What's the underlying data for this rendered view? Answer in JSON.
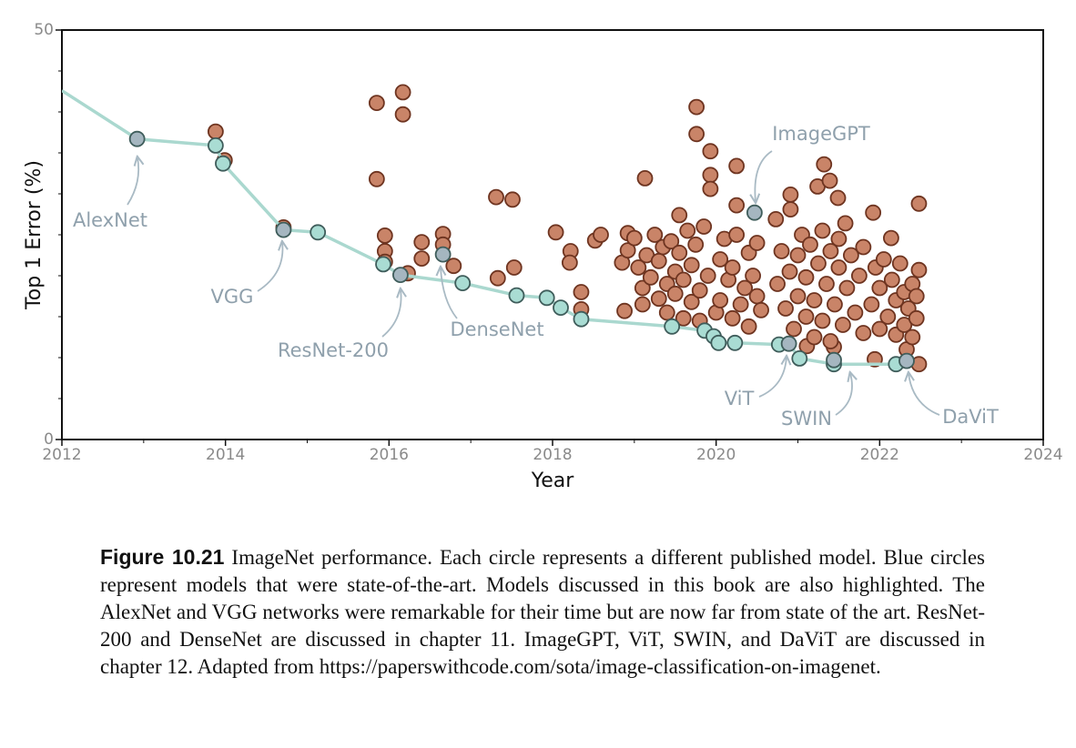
{
  "chart_data": {
    "type": "scatter",
    "xlabel": "Year",
    "ylabel": "Top 1 Error (%)",
    "xlim": [
      2012,
      2024
    ],
    "ylim": [
      0,
      50
    ],
    "xticks": [
      2012,
      2014,
      2016,
      2018,
      2020,
      2022,
      2024
    ],
    "xminor_ticks": [
      2013,
      2015,
      2017,
      2019,
      2021,
      2023
    ],
    "yticks": [
      0,
      50
    ],
    "yminor_ticks": [
      5,
      10,
      15,
      20,
      25,
      30,
      35,
      40,
      45
    ],
    "series": [
      {
        "color": "#c98468",
        "marker": true,
        "line": false,
        "x": [
          2013.88,
          2013.99,
          2014.71,
          2015.85,
          2016.17,
          2016.17,
          2015.85,
          2015.95,
          2015.95,
          2015.95,
          2016.23,
          2016.4,
          2016.4,
          2016.66,
          2016.66,
          2016.79,
          2017.31,
          2017.51,
          2017.33,
          2017.53,
          2018.04,
          2018.22,
          2018.21,
          2018.35,
          2018.35,
          2018.52,
          2018.59,
          2018.88,
          2018.85,
          2018.92,
          2018.92,
          2019.13,
          2019.55,
          2019.76,
          2019.76,
          2019.93,
          2019.93,
          2019.93,
          2020.25,
          2020.25,
          2020.73,
          2020.91,
          2020.91,
          2021.24,
          2021.32,
          2021.39,
          2021.49,
          2021.58,
          2021.92,
          2022.48,
          2022.48,
          2022.14,
          2022.48,
          2022.33,
          2021.94,
          2021.44,
          2021.11,
          2019.0,
          2019.05,
          2019.1,
          2019.1,
          2019.15,
          2019.2,
          2019.25,
          2019.3,
          2019.3,
          2019.35,
          2019.4,
          2019.4,
          2019.45,
          2019.5,
          2019.5,
          2019.55,
          2019.6,
          2019.6,
          2019.65,
          2019.7,
          2019.7,
          2019.75,
          2019.8,
          2019.8,
          2019.85,
          2019.9,
          2020.0,
          2020.05,
          2020.05,
          2020.1,
          2020.15,
          2020.2,
          2020.2,
          2020.25,
          2020.3,
          2020.35,
          2020.4,
          2020.4,
          2020.45,
          2020.5,
          2020.5,
          2020.55,
          2020.75,
          2020.8,
          2020.85,
          2020.9,
          2020.95,
          2021.0,
          2021.0,
          2021.05,
          2021.1,
          2021.1,
          2021.15,
          2021.2,
          2021.2,
          2021.25,
          2021.3,
          2021.3,
          2021.35,
          2021.4,
          2021.4,
          2021.45,
          2021.5,
          2021.5,
          2021.55,
          2021.6,
          2021.65,
          2021.7,
          2021.75,
          2021.8,
          2021.8,
          2021.9,
          2021.95,
          2022.0,
          2022.0,
          2022.05,
          2022.1,
          2022.15,
          2022.2,
          2022.2,
          2022.25,
          2022.3,
          2022.3,
          2022.35,
          2022.4,
          2022.4,
          2022.45,
          2022.45
        ],
        "y": [
          37.6,
          34.1,
          25.9,
          41.1,
          42.4,
          39.7,
          31.8,
          24.9,
          23.0,
          21.7,
          20.3,
          24.1,
          22.1,
          25.1,
          23.8,
          21.2,
          29.6,
          29.3,
          19.7,
          21.0,
          25.3,
          23.0,
          21.6,
          18.0,
          15.9,
          24.3,
          25.0,
          15.7,
          21.6,
          25.2,
          23.1,
          31.9,
          27.4,
          40.6,
          37.3,
          35.2,
          32.3,
          30.6,
          33.4,
          28.6,
          26.9,
          29.9,
          28.1,
          30.9,
          33.6,
          31.6,
          29.5,
          26.4,
          27.7,
          28.8,
          20.7,
          24.6,
          9.2,
          11.0,
          9.8,
          11.3,
          11.4,
          24.6,
          21.0,
          18.5,
          16.5,
          22.5,
          19.8,
          25.0,
          17.2,
          21.8,
          23.5,
          19.0,
          15.5,
          24.2,
          20.5,
          17.8,
          22.8,
          14.8,
          19.5,
          25.5,
          21.3,
          16.8,
          23.8,
          18.2,
          14.5,
          26.0,
          20.0,
          15.5,
          17.0,
          22.0,
          24.5,
          19.5,
          14.8,
          21.0,
          25.0,
          16.5,
          18.5,
          22.8,
          13.8,
          20.0,
          24.0,
          17.5,
          15.8,
          19.0,
          23.0,
          16.0,
          20.5,
          13.5,
          22.5,
          17.5,
          25.0,
          15.0,
          19.8,
          23.8,
          12.5,
          17.0,
          21.5,
          25.5,
          14.5,
          19.0,
          23.0,
          12.0,
          16.5,
          21.0,
          24.5,
          14.0,
          18.5,
          22.5,
          15.5,
          20.0,
          13.0,
          23.5,
          16.5,
          21.0,
          13.5,
          18.5,
          22.0,
          15.0,
          19.5,
          12.8,
          17.0,
          21.5,
          14.0,
          18.0,
          16.0,
          12.5,
          19.0,
          14.8,
          17.5
        ]
      },
      {
        "color": "#aad8cf",
        "marker": false,
        "line": true,
        "x": [
          2012,
          2012.92,
          2013.88,
          2013.97,
          2014.71,
          2015.13,
          2015.93,
          2016.14,
          2016.9,
          2017.56,
          2017.93,
          2018.1,
          2018.35,
          2019.46,
          2019.86,
          2019.97,
          2020.03,
          2020.23,
          2020.77,
          2020.89,
          2021.02,
          2021.44,
          2022.2,
          2022.33
        ],
        "y": [
          42.6,
          36.7,
          35.9,
          33.7,
          25.6,
          25.3,
          21.4,
          20.1,
          19.1,
          17.6,
          17.3,
          16.1,
          14.7,
          13.8,
          13.3,
          12.6,
          11.8,
          11.8,
          11.6,
          11.7,
          9.9,
          9.2,
          9.2,
          9.2
        ]
      },
      {
        "color": "#a9dcd3",
        "marker": true,
        "line": false,
        "x": [
          2013.88,
          2013.97,
          2015.13,
          2015.93,
          2016.9,
          2017.56,
          2017.93,
          2018.1,
          2018.35,
          2019.46,
          2019.86,
          2019.97,
          2020.03,
          2020.23,
          2020.77,
          2021.02,
          2021.44,
          2022.2
        ],
        "y": [
          35.9,
          33.7,
          25.3,
          21.4,
          19.1,
          17.6,
          17.3,
          16.1,
          14.7,
          13.8,
          13.3,
          12.6,
          11.8,
          11.8,
          11.6,
          9.9,
          9.2,
          9.2
        ]
      },
      {
        "color": "#a5b6c0",
        "marker": true,
        "line": false,
        "x": [
          2012.92,
          2014.71,
          2016.14,
          2016.66,
          2020.47,
          2020.89,
          2021.44,
          2022.33
        ],
        "y": [
          36.7,
          25.6,
          20.1,
          22.6,
          27.7,
          11.7,
          9.7,
          9.6
        ]
      }
    ],
    "annotations": [
      {
        "text": "AlexNet"
      },
      {
        "text": "VGG"
      },
      {
        "text": "ResNet-200"
      },
      {
        "text": "DenseNet"
      },
      {
        "text": "ImageGPT"
      },
      {
        "text": "ViT"
      },
      {
        "text": "SWIN"
      },
      {
        "text": "DaViT"
      }
    ]
  },
  "caption": {
    "label": "Figure 10.21",
    "text": "ImageNet performance. Each circle represents a different published model. Blue circles represent models that were state-of-the-art. Models discussed in this book are also highlighted. The AlexNet and VGG networks were remarkable for their time but are now far from state of the art. ResNet-200 and DenseNet are discussed in chapter 11. ImageGPT, ViT, SWIN, and DaViT are discussed in chapter 12. Adapted from https://paperswithcode.com/sota/image-classification-on-imagenet."
  }
}
